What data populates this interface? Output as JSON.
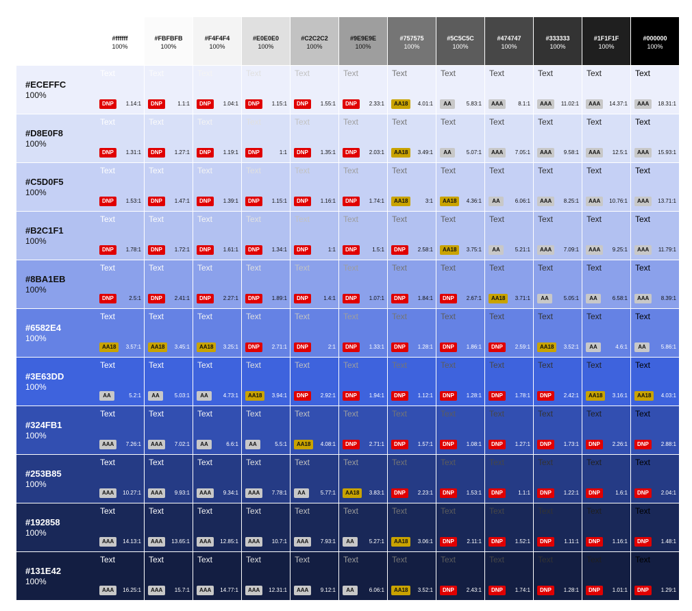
{
  "sample_text": "Text",
  "columns": [
    {
      "hex": "#ffffff",
      "pct": "100%",
      "color": "#ffffff"
    },
    {
      "hex": "#FBFBFB",
      "pct": "100%",
      "color": "#FBFBFB"
    },
    {
      "hex": "#F4F4F4",
      "pct": "100%",
      "color": "#F4F4F4"
    },
    {
      "hex": "#E0E0E0",
      "pct": "100%",
      "color": "#E0E0E0"
    },
    {
      "hex": "#C2C2C2",
      "pct": "100%",
      "color": "#C2C2C2"
    },
    {
      "hex": "#9E9E9E",
      "pct": "100%",
      "color": "#9E9E9E"
    },
    {
      "hex": "#757575",
      "pct": "100%",
      "color": "#757575"
    },
    {
      "hex": "#5C5C5C",
      "pct": "100%",
      "color": "#5C5C5C"
    },
    {
      "hex": "#474747",
      "pct": "100%",
      "color": "#474747"
    },
    {
      "hex": "#333333",
      "pct": "100%",
      "color": "#333333"
    },
    {
      "hex": "#1F1F1F",
      "pct": "100%",
      "color": "#1F1F1F"
    },
    {
      "hex": "#000000",
      "pct": "100%",
      "color": "#000000"
    }
  ],
  "rows": [
    {
      "hex": "#ECEFFC",
      "pct": "100%",
      "color": "#ECEFFC",
      "cells": [
        [
          "DNP",
          "1.14:1"
        ],
        [
          "DNP",
          "1.1:1"
        ],
        [
          "DNP",
          "1.04:1"
        ],
        [
          "DNP",
          "1.15:1"
        ],
        [
          "DNP",
          "1.55:1"
        ],
        [
          "DNP",
          "2.33:1"
        ],
        [
          "AA18",
          "4.01:1"
        ],
        [
          "AA",
          "5.83:1"
        ],
        [
          "AAA",
          "8.1:1"
        ],
        [
          "AAA",
          "11.02:1"
        ],
        [
          "AAA",
          "14.37:1"
        ],
        [
          "AAA",
          "18.31:1"
        ]
      ]
    },
    {
      "hex": "#D8E0F8",
      "pct": "100%",
      "color": "#D8E0F8",
      "cells": [
        [
          "DNP",
          "1.31:1"
        ],
        [
          "DNP",
          "1.27:1"
        ],
        [
          "DNP",
          "1.19:1"
        ],
        [
          "DNP",
          "1:1"
        ],
        [
          "DNP",
          "1.35:1"
        ],
        [
          "DNP",
          "2.03:1"
        ],
        [
          "AA18",
          "3.49:1"
        ],
        [
          "AA",
          "5.07:1"
        ],
        [
          "AAA",
          "7.05:1"
        ],
        [
          "AAA",
          "9.58:1"
        ],
        [
          "AAA",
          "12.5:1"
        ],
        [
          "AAA",
          "15.93:1"
        ]
      ]
    },
    {
      "hex": "#C5D0F5",
      "pct": "100%",
      "color": "#C5D0F5",
      "cells": [
        [
          "DNP",
          "1.53:1"
        ],
        [
          "DNP",
          "1.47:1"
        ],
        [
          "DNP",
          "1.39:1"
        ],
        [
          "DNP",
          "1.15:1"
        ],
        [
          "DNP",
          "1.16:1"
        ],
        [
          "DNP",
          "1.74:1"
        ],
        [
          "AA18",
          "3:1"
        ],
        [
          "AA18",
          "4.36:1"
        ],
        [
          "AA",
          "6.06:1"
        ],
        [
          "AAA",
          "8.25:1"
        ],
        [
          "AAA",
          "10.76:1"
        ],
        [
          "AAA",
          "13.71:1"
        ]
      ]
    },
    {
      "hex": "#B2C1F1",
      "pct": "100%",
      "color": "#B2C1F1",
      "cells": [
        [
          "DNP",
          "1.78:1"
        ],
        [
          "DNP",
          "1.72:1"
        ],
        [
          "DNP",
          "1.61:1"
        ],
        [
          "DNP",
          "1.34:1"
        ],
        [
          "DNP",
          "1:1"
        ],
        [
          "DNP",
          "1.5:1"
        ],
        [
          "DNP",
          "2.58:1"
        ],
        [
          "AA18",
          "3.75:1"
        ],
        [
          "AA",
          "5.21:1"
        ],
        [
          "AAA",
          "7.09:1"
        ],
        [
          "AAA",
          "9.25:1"
        ],
        [
          "AAA",
          "11.79:1"
        ]
      ]
    },
    {
      "hex": "#8BA1EB",
      "pct": "100%",
      "color": "#8BA1EB",
      "cells": [
        [
          "DNP",
          "2.5:1"
        ],
        [
          "DNP",
          "2.41:1"
        ],
        [
          "DNP",
          "2.27:1"
        ],
        [
          "DNP",
          "1.89:1"
        ],
        [
          "DNP",
          "1.4:1"
        ],
        [
          "DNP",
          "1.07:1"
        ],
        [
          "DNP",
          "1.84:1"
        ],
        [
          "DNP",
          "2.67:1"
        ],
        [
          "AA18",
          "3.71:1"
        ],
        [
          "AA",
          "5.05:1"
        ],
        [
          "AA",
          "6.58:1"
        ],
        [
          "AAA",
          "8.39:1"
        ]
      ]
    },
    {
      "hex": "#6582E4",
      "pct": "100%",
      "color": "#6582E4",
      "cells": [
        [
          "AA18",
          "3.57:1"
        ],
        [
          "AA18",
          "3.45:1"
        ],
        [
          "AA18",
          "3.25:1"
        ],
        [
          "DNP",
          "2.71:1"
        ],
        [
          "DNP",
          "2:1"
        ],
        [
          "DNP",
          "1.33:1"
        ],
        [
          "DNP",
          "1.28:1"
        ],
        [
          "DNP",
          "1.86:1"
        ],
        [
          "DNP",
          "2.59:1"
        ],
        [
          "AA18",
          "3.52:1"
        ],
        [
          "AA",
          "4.6:1"
        ],
        [
          "AA",
          "5.86:1"
        ]
      ]
    },
    {
      "hex": "#3E63DD",
      "pct": "100%",
      "color": "#3E63DD",
      "cells": [
        [
          "AA",
          "5.2:1"
        ],
        [
          "AA",
          "5.03:1"
        ],
        [
          "AA",
          "4.73:1"
        ],
        [
          "AA18",
          "3.94:1"
        ],
        [
          "DNP",
          "2.92:1"
        ],
        [
          "DNP",
          "1.94:1"
        ],
        [
          "DNP",
          "1.12:1"
        ],
        [
          "DNP",
          "1.28:1"
        ],
        [
          "DNP",
          "1.78:1"
        ],
        [
          "DNP",
          "2.42:1"
        ],
        [
          "AA18",
          "3.16:1"
        ],
        [
          "AA18",
          "4.03:1"
        ]
      ]
    },
    {
      "hex": "#324FB1",
      "pct": "100%",
      "color": "#324FB1",
      "cells": [
        [
          "AAA",
          "7.26:1"
        ],
        [
          "AAA",
          "7.02:1"
        ],
        [
          "AA",
          "6.6:1"
        ],
        [
          "AA",
          "5.5:1"
        ],
        [
          "AA18",
          "4.08:1"
        ],
        [
          "DNP",
          "2.71:1"
        ],
        [
          "DNP",
          "1.57:1"
        ],
        [
          "DNP",
          "1.08:1"
        ],
        [
          "DNP",
          "1.27:1"
        ],
        [
          "DNP",
          "1.73:1"
        ],
        [
          "DNP",
          "2.26:1"
        ],
        [
          "DNP",
          "2.88:1"
        ]
      ]
    },
    {
      "hex": "#253B85",
      "pct": "100%",
      "color": "#253B85",
      "cells": [
        [
          "AAA",
          "10.27:1"
        ],
        [
          "AAA",
          "9.93:1"
        ],
        [
          "AAA",
          "9.34:1"
        ],
        [
          "AAA",
          "7.78:1"
        ],
        [
          "AA",
          "5.77:1"
        ],
        [
          "AA18",
          "3.83:1"
        ],
        [
          "DNP",
          "2.23:1"
        ],
        [
          "DNP",
          "1.53:1"
        ],
        [
          "DNP",
          "1.1:1"
        ],
        [
          "DNP",
          "1.22:1"
        ],
        [
          "DNP",
          "1.6:1"
        ],
        [
          "DNP",
          "2.04:1"
        ]
      ]
    },
    {
      "hex": "#192858",
      "pct": "100%",
      "color": "#192858",
      "cells": [
        [
          "AAA",
          "14.13:1"
        ],
        [
          "AAA",
          "13.65:1"
        ],
        [
          "AAA",
          "12.85:1"
        ],
        [
          "AAA",
          "10.7:1"
        ],
        [
          "AAA",
          "7.93:1"
        ],
        [
          "AA",
          "5.27:1"
        ],
        [
          "AA18",
          "3.06:1"
        ],
        [
          "DNP",
          "2.11:1"
        ],
        [
          "DNP",
          "1.52:1"
        ],
        [
          "DNP",
          "1.11:1"
        ],
        [
          "DNP",
          "1.16:1"
        ],
        [
          "DNP",
          "1.48:1"
        ]
      ]
    },
    {
      "hex": "#131E42",
      "pct": "100%",
      "color": "#131E42",
      "cells": [
        [
          "AAA",
          "16.25:1"
        ],
        [
          "AAA",
          "15.7:1"
        ],
        [
          "AAA",
          "14.77:1"
        ],
        [
          "AAA",
          "12.31:1"
        ],
        [
          "AAA",
          "9.12:1"
        ],
        [
          "AA",
          "6.06:1"
        ],
        [
          "AA18",
          "3.52:1"
        ],
        [
          "DNP",
          "2.43:1"
        ],
        [
          "DNP",
          "1.74:1"
        ],
        [
          "DNP",
          "1.28:1"
        ],
        [
          "DNP",
          "1.01:1"
        ],
        [
          "DNP",
          "1.29:1"
        ]
      ]
    }
  ],
  "badge_colors": {
    "DNP": {
      "bg": "#E00000",
      "fg": "#ffffff"
    },
    "AA18": {
      "bg": "#C9A300",
      "fg": "#111111"
    },
    "AA": {
      "bg": "#C8C8C8",
      "fg": "#111111"
    },
    "AAA": {
      "bg": "#C8C8C8",
      "fg": "#111111"
    }
  }
}
